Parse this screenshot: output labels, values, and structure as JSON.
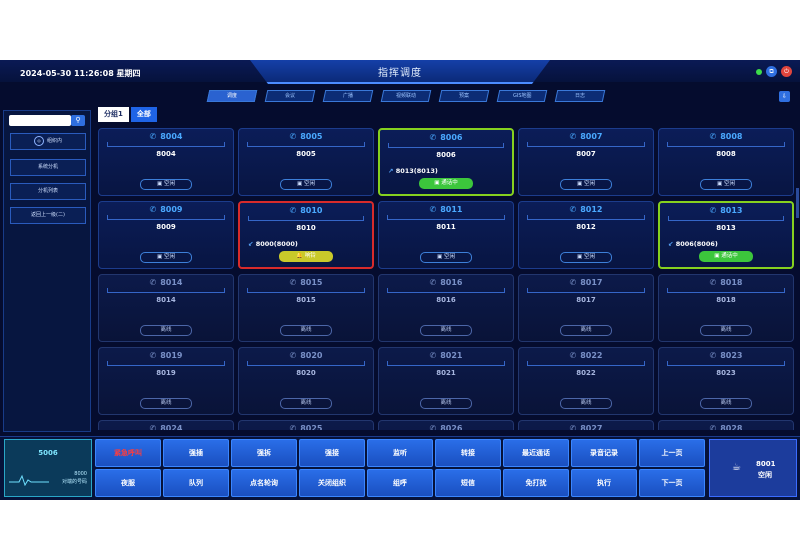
{
  "header": {
    "datetime": "2024-05-30 11:26:08  星期四",
    "title": "指挥调度",
    "tabs": [
      "调度",
      "会议",
      "广播",
      "视频联动",
      "预案",
      "GIS地图",
      "日志"
    ],
    "active_tab": 0,
    "icons": [
      "status-dot",
      "copy-icon",
      "power-icon",
      "export-icon"
    ]
  },
  "sidebar": {
    "search_placeholder": "",
    "items": [
      "组织内",
      "系统分机",
      "分机列表",
      "返回上一级(二)"
    ]
  },
  "group_tabs": [
    "分组1",
    "全部"
  ],
  "extensions": [
    {
      "num": "8004",
      "name": "8004",
      "status": "空闲",
      "state": "idle"
    },
    {
      "num": "8005",
      "name": "8005",
      "status": "空闲",
      "state": "idle"
    },
    {
      "num": "8006",
      "name": "8006",
      "call": "8013(8013)",
      "dir": "out",
      "status": "通话中",
      "state": "talk"
    },
    {
      "num": "8007",
      "name": "8007",
      "status": "空闲",
      "state": "idle"
    },
    {
      "num": "8008",
      "name": "8008",
      "status": "空闲",
      "state": "idle"
    },
    {
      "num": "8009",
      "name": "8009",
      "status": "空闲",
      "state": "idle"
    },
    {
      "num": "8010",
      "name": "8010",
      "call": "8000(8000)",
      "dir": "in",
      "status": "响铃",
      "state": "ring"
    },
    {
      "num": "8011",
      "name": "8011",
      "status": "空闲",
      "state": "idle"
    },
    {
      "num": "8012",
      "name": "8012",
      "status": "空闲",
      "state": "idle"
    },
    {
      "num": "8013",
      "name": "8013",
      "call": "8006(8006)",
      "dir": "in",
      "status": "通话中",
      "state": "talk"
    },
    {
      "num": "8014",
      "name": "8014",
      "status": "离线",
      "state": "offline"
    },
    {
      "num": "8015",
      "name": "8015",
      "status": "离线",
      "state": "offline"
    },
    {
      "num": "8016",
      "name": "8016",
      "status": "离线",
      "state": "offline"
    },
    {
      "num": "8017",
      "name": "8017",
      "status": "离线",
      "state": "offline"
    },
    {
      "num": "8018",
      "name": "8018",
      "status": "离线",
      "state": "offline"
    },
    {
      "num": "8019",
      "name": "8019",
      "status": "离线",
      "state": "offline"
    },
    {
      "num": "8020",
      "name": "8020",
      "status": "离线",
      "state": "offline"
    },
    {
      "num": "8021",
      "name": "8021",
      "status": "离线",
      "state": "offline"
    },
    {
      "num": "8022",
      "name": "8022",
      "status": "离线",
      "state": "offline"
    },
    {
      "num": "8023",
      "name": "8023",
      "status": "离线",
      "state": "offline"
    },
    {
      "num": "8024",
      "name": "",
      "status": "",
      "state": "offline"
    },
    {
      "num": "8025",
      "name": "",
      "status": "",
      "state": "offline"
    },
    {
      "num": "8026",
      "name": "",
      "status": "",
      "state": "offline"
    },
    {
      "num": "8027",
      "name": "",
      "status": "",
      "state": "offline"
    },
    {
      "num": "8028",
      "name": "",
      "status": "",
      "state": "offline"
    }
  ],
  "monitor": {
    "id": "5006",
    "line1": "8000",
    "line2": "对端的号码"
  },
  "keys": [
    {
      "label": "紧急呼叫",
      "alert": true
    },
    {
      "label": "强插"
    },
    {
      "label": "强拆"
    },
    {
      "label": "强接"
    },
    {
      "label": "监听"
    },
    {
      "label": "转接"
    },
    {
      "label": "最近通话"
    },
    {
      "label": "录音记录"
    },
    {
      "label": "上一页"
    },
    {
      "label": "夜服"
    },
    {
      "label": "队列"
    },
    {
      "label": "点名轮询"
    },
    {
      "label": "关闭组织"
    },
    {
      "label": "组呼"
    },
    {
      "label": "短信"
    },
    {
      "label": "免打扰"
    },
    {
      "label": "执行"
    },
    {
      "label": "下一页"
    }
  ],
  "current_ext": {
    "num": "8001",
    "status": "空闲"
  },
  "colors": {
    "bg": "#050c2e",
    "accent": "#1f64e6",
    "talk": "#3cc63c",
    "ring": "#c9c92a",
    "alert": "#ff3c3c"
  }
}
